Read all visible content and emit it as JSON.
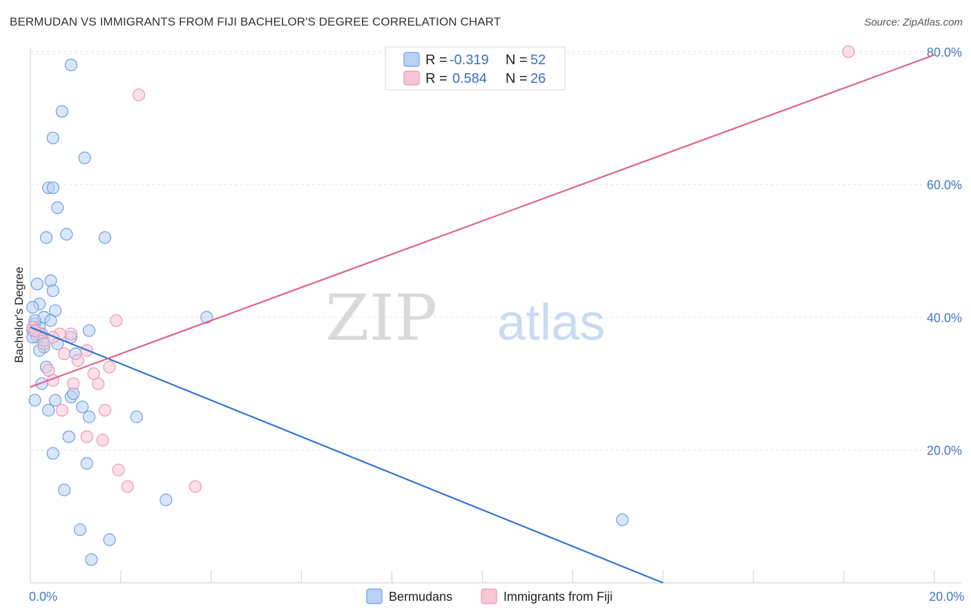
{
  "chart_data": {
    "type": "scatter",
    "title": "BERMUDAN VS IMMIGRANTS FROM FIJI BACHELOR'S DEGREE CORRELATION CHART",
    "source": "Source: ZipAtlas.com",
    "ylabel": "Bachelor's Degree",
    "xlabel": "",
    "xlim": [
      0,
      20.6
    ],
    "ylim": [
      0,
      80.5
    ],
    "x_tick_labels": [
      {
        "value": 0,
        "label": "0.0%"
      },
      {
        "value": 20,
        "label": "20.0%"
      }
    ],
    "x_minor_ticks": [
      2,
      4,
      6,
      8,
      10,
      12,
      14,
      16,
      18,
      20
    ],
    "y_ticks": [
      {
        "value": 20,
        "label": "20.0%"
      },
      {
        "value": 40,
        "label": "40.0%"
      },
      {
        "value": 60,
        "label": "60.0%"
      },
      {
        "value": 80,
        "label": "80.0%"
      }
    ],
    "watermark": {
      "zip": "ZIP",
      "atlas": "atlas"
    },
    "legend": {
      "rows": [
        {
          "r_label": "R =",
          "r_value": "-0.319",
          "n_label": "N =",
          "n_value": "52"
        },
        {
          "r_label": "R =",
          "r_value": "0.584",
          "n_label": "N =",
          "n_value": "26"
        }
      ]
    },
    "series": [
      {
        "name": "Bermudans",
        "color": "#6d9ee8",
        "fill": "#b9d1f3",
        "line_color": "#2f72d4",
        "trend": {
          "x0": 0,
          "y0": 38.5,
          "x1": 14,
          "y1": 0
        },
        "points": [
          [
            0.9,
            78.0
          ],
          [
            0.7,
            71.0
          ],
          [
            0.5,
            67.0
          ],
          [
            1.2,
            64.0
          ],
          [
            0.4,
            59.5
          ],
          [
            0.5,
            59.5
          ],
          [
            0.6,
            56.5
          ],
          [
            0.35,
            52.0
          ],
          [
            0.8,
            52.5
          ],
          [
            1.65,
            52.0
          ],
          [
            0.45,
            45.5
          ],
          [
            0.15,
            45.0
          ],
          [
            0.5,
            44.0
          ],
          [
            0.2,
            42.0
          ],
          [
            0.55,
            41.0
          ],
          [
            0.05,
            41.5
          ],
          [
            0.3,
            40.0
          ],
          [
            0.45,
            39.5
          ],
          [
            0.1,
            39.0
          ],
          [
            0.2,
            38.5
          ],
          [
            0.05,
            38.0
          ],
          [
            0.25,
            37.5
          ],
          [
            1.3,
            38.0
          ],
          [
            0.15,
            37.0
          ],
          [
            0.9,
            37.0
          ],
          [
            0.6,
            36.0
          ],
          [
            0.3,
            35.5
          ],
          [
            0.2,
            35.0
          ],
          [
            1.0,
            34.5
          ],
          [
            0.35,
            32.5
          ],
          [
            0.25,
            30.0
          ],
          [
            0.9,
            28.0
          ],
          [
            0.95,
            28.5
          ],
          [
            0.1,
            27.5
          ],
          [
            0.55,
            27.5
          ],
          [
            1.15,
            26.5
          ],
          [
            0.4,
            26.0
          ],
          [
            2.35,
            25.0
          ],
          [
            1.3,
            25.0
          ],
          [
            0.85,
            22.0
          ],
          [
            0.5,
            19.5
          ],
          [
            1.25,
            18.0
          ],
          [
            0.75,
            14.0
          ],
          [
            3.0,
            12.5
          ],
          [
            1.1,
            8.0
          ],
          [
            1.75,
            6.5
          ],
          [
            1.35,
            3.5
          ],
          [
            13.1,
            9.5
          ],
          [
            3.9,
            40.0
          ],
          [
            0.1,
            39.5
          ],
          [
            0.3,
            36.5
          ],
          [
            0.05,
            37.0
          ]
        ]
      },
      {
        "name": "Immigrants from Fiji",
        "color": "#ee96b2",
        "fill": "#f8c6d5",
        "line_color": "#e0608a",
        "trend": {
          "x0": 0,
          "y0": 29.5,
          "x1": 20,
          "y1": 79.5
        },
        "points": [
          [
            18.1,
            80.0
          ],
          [
            2.4,
            73.5
          ],
          [
            1.9,
            39.5
          ],
          [
            0.05,
            38.5
          ],
          [
            0.2,
            37.5
          ],
          [
            0.65,
            37.5
          ],
          [
            0.9,
            37.5
          ],
          [
            1.25,
            35.0
          ],
          [
            0.3,
            36.0
          ],
          [
            0.75,
            34.5
          ],
          [
            1.05,
            33.5
          ],
          [
            1.75,
            32.5
          ],
          [
            0.4,
            32.0
          ],
          [
            1.4,
            31.5
          ],
          [
            0.5,
            30.5
          ],
          [
            0.95,
            30.0
          ],
          [
            1.5,
            30.0
          ],
          [
            0.7,
            26.0
          ],
          [
            1.65,
            26.0
          ],
          [
            1.25,
            22.0
          ],
          [
            1.6,
            21.5
          ],
          [
            1.95,
            17.0
          ],
          [
            2.15,
            14.5
          ],
          [
            3.65,
            14.5
          ],
          [
            0.1,
            38.0
          ],
          [
            0.5,
            37.0
          ]
        ]
      }
    ]
  }
}
